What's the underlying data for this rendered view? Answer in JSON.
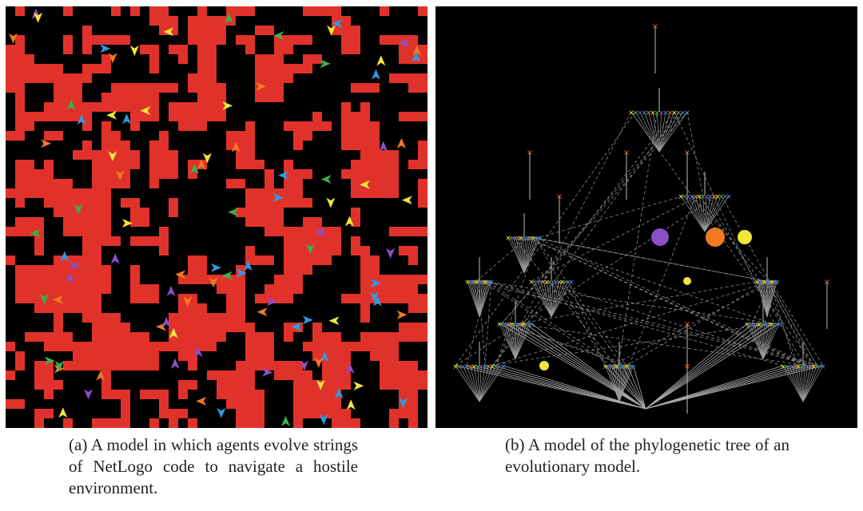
{
  "figures": [
    {
      "caption": "(a) A model in which agents evolve strings of NetLogo code to navigate a hostile environment."
    },
    {
      "caption": "(b) A model of the phylogenetic tree of an evolutionary model."
    }
  ]
}
